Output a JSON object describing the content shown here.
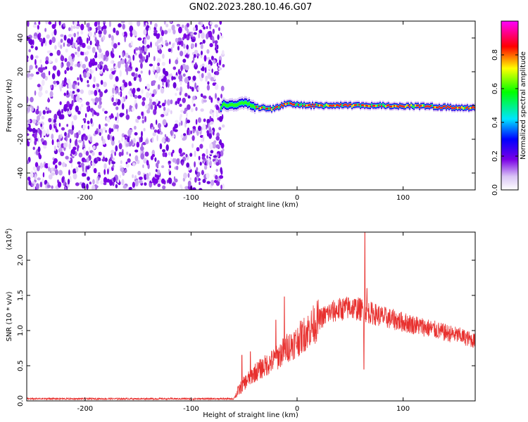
{
  "title": "GN02.2023.280.10.46.G07",
  "chart_data": [
    {
      "type": "heatmap",
      "xlabel": "Height of straight line (km)",
      "ylabel": "Frequency (Hz)",
      "xlim": [
        -255,
        168
      ],
      "ylim": [
        -50,
        50
      ],
      "x_ticks": [
        -200,
        -100,
        0,
        100
      ],
      "y_ticks": [
        -40,
        -20,
        0,
        20,
        40
      ],
      "noise_region_x": [
        -255,
        -72
      ],
      "signal_band": [
        {
          "x": -72,
          "f": 0.5
        },
        {
          "x": -60,
          "f": 0.0
        },
        {
          "x": -50,
          "f": 2.0
        },
        {
          "x": -40,
          "f": -1.0
        },
        {
          "x": -25,
          "f": -2.0
        },
        {
          "x": -10,
          "f": 1.0
        },
        {
          "x": 10,
          "f": 0.0
        },
        {
          "x": 40,
          "f": 0.0
        },
        {
          "x": 80,
          "f": 0.0
        },
        {
          "x": 120,
          "f": -0.5
        },
        {
          "x": 168,
          "f": -1.5
        }
      ],
      "colorbar": {
        "label": "Normalized spectral amplitude",
        "range": [
          0.0,
          1.0
        ],
        "ticks": [
          0.0,
          0.2,
          0.4,
          0.6,
          0.8
        ]
      }
    },
    {
      "type": "line",
      "xlabel": "Height of straight line (km)",
      "ylabel": "SNR (10 * v/v)",
      "y_multiplier_label": "(x10",
      "y_multiplier_exp": "4",
      "y_multiplier_close": ")",
      "xlim": [
        -255,
        168
      ],
      "ylim": [
        0.0,
        2.4
      ],
      "x_ticks": [
        -200,
        -100,
        0,
        100
      ],
      "y_ticks": [
        0.0,
        0.5,
        1.0,
        1.5,
        2.0
      ],
      "y_tick_labels": [
        "0.0",
        "0.5",
        "1.0",
        "1.5",
        "2.0"
      ],
      "color": "#e8302e",
      "series": [
        {
          "x": [
            -255,
            -200,
            -150,
            -100,
            -60,
            -55,
            -50,
            -40,
            -30,
            -20,
            -10,
            0,
            10,
            20,
            30,
            40,
            50,
            60,
            70,
            80,
            100,
            120,
            140,
            155,
            168
          ],
          "y": [
            0.03,
            0.03,
            0.03,
            0.03,
            0.03,
            0.15,
            0.25,
            0.4,
            0.5,
            0.6,
            0.75,
            0.85,
            1.0,
            1.15,
            1.25,
            1.3,
            1.33,
            1.3,
            1.25,
            1.2,
            1.12,
            1.05,
            0.97,
            0.92,
            0.85
          ]
        }
      ],
      "spikes": [
        {
          "x": -12,
          "y": 1.48
        },
        {
          "x": -20,
          "y": 1.15
        },
        {
          "x": 64,
          "y": 2.43
        },
        {
          "x": 63,
          "y": 0.45
        },
        {
          "x": 66,
          "y": 1.6
        },
        {
          "x": -52,
          "y": 0.65
        },
        {
          "x": -44,
          "y": 0.7
        }
      ]
    }
  ]
}
